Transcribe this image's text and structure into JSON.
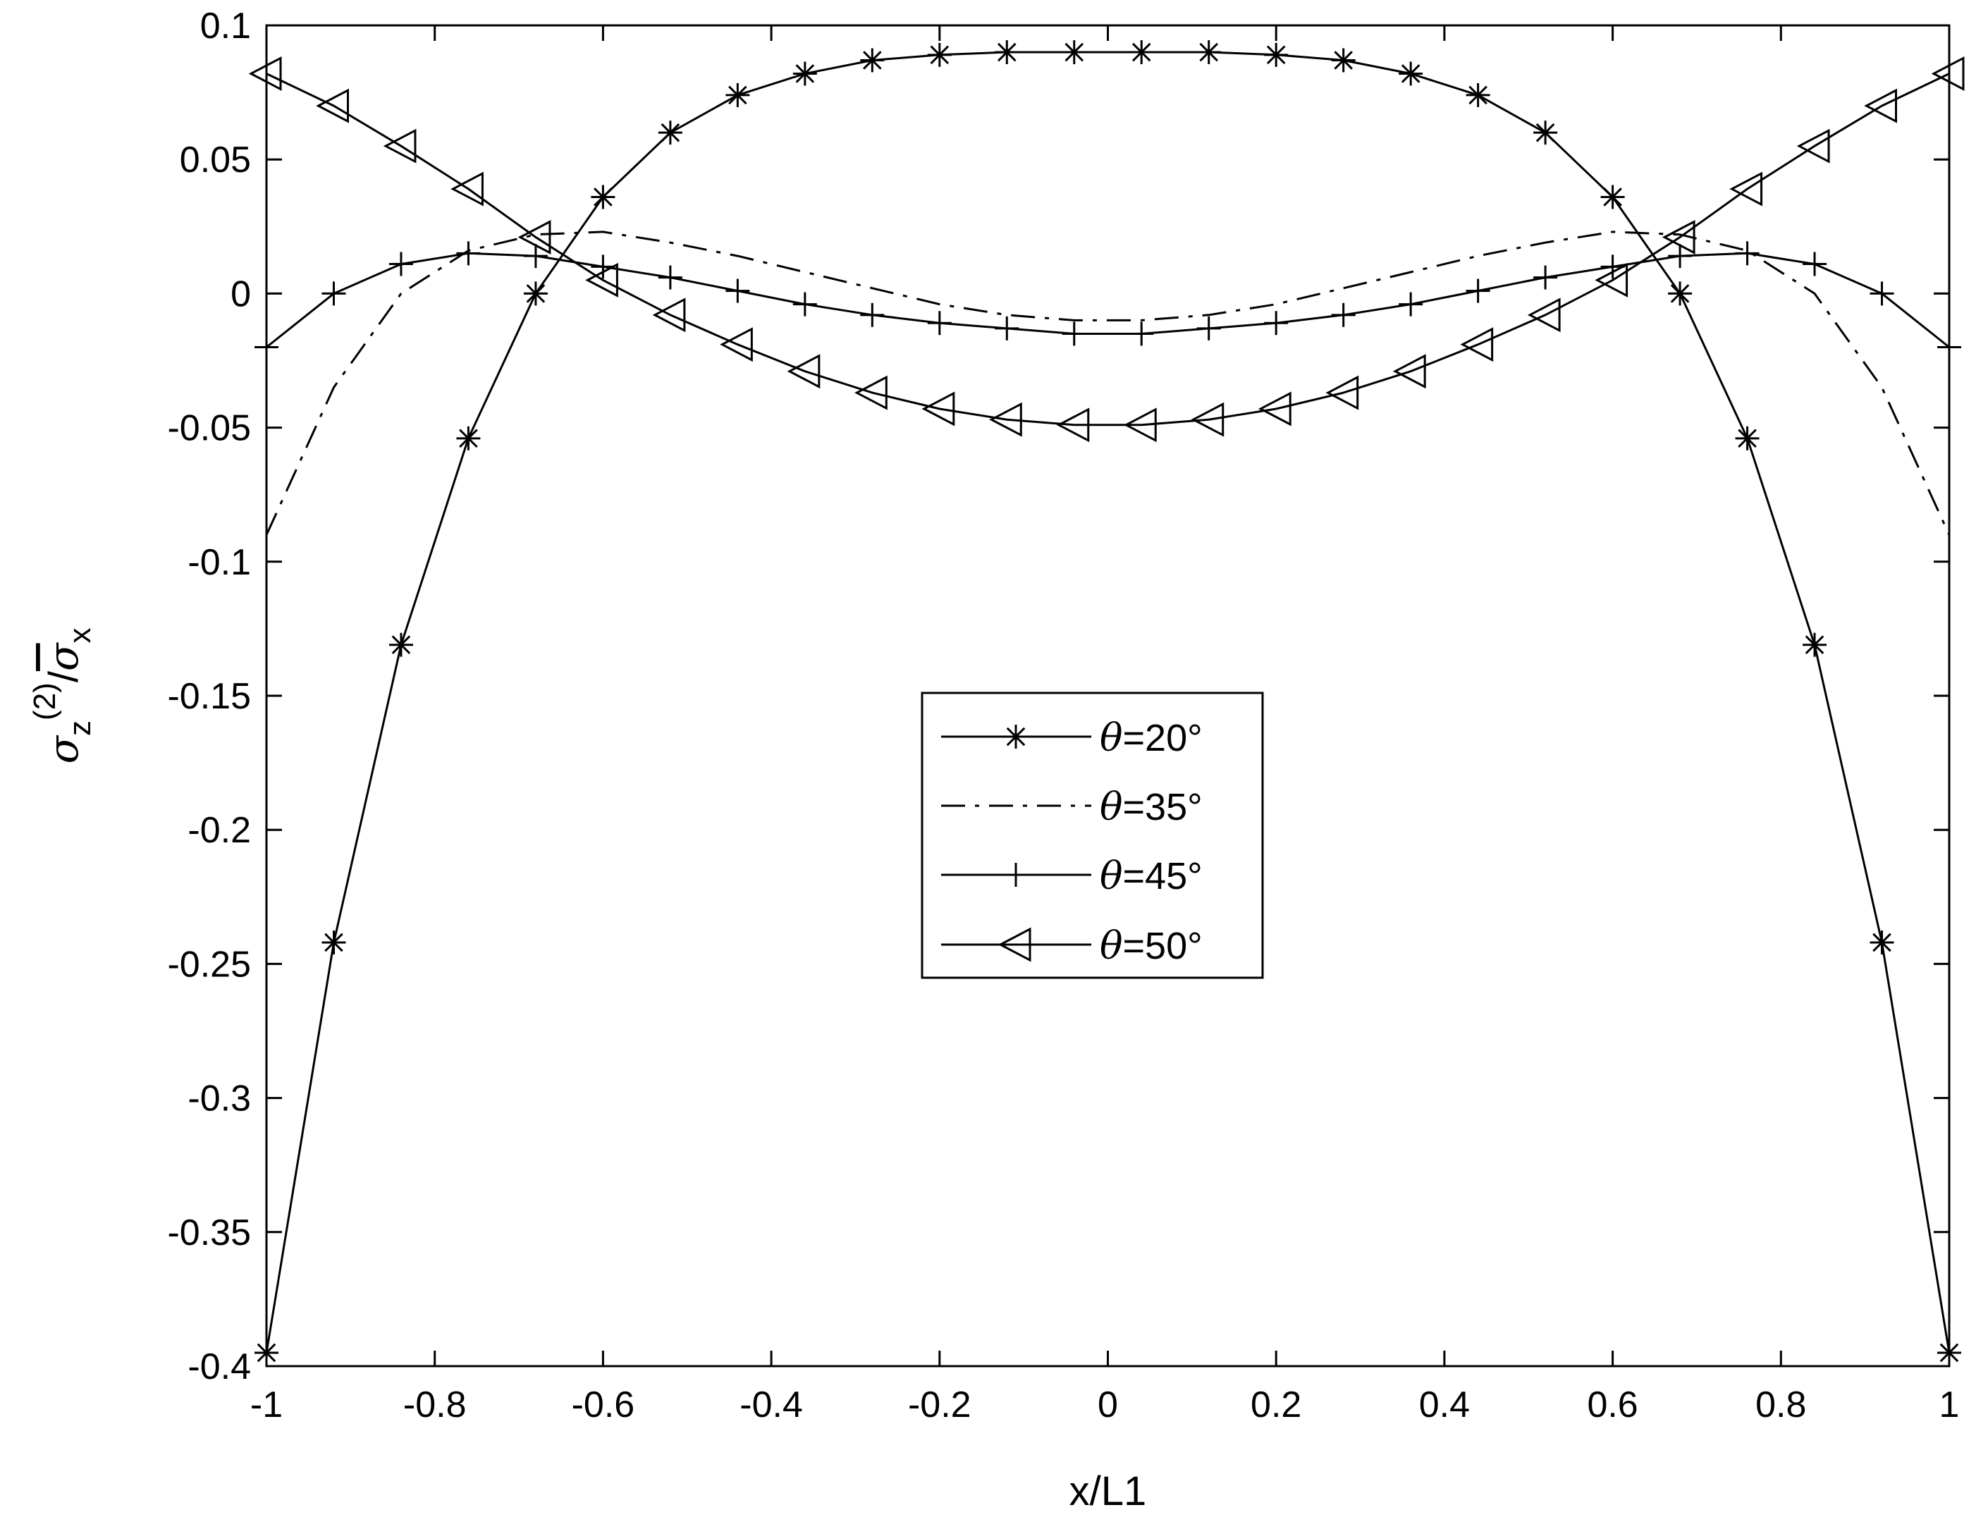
{
  "chart_data": {
    "type": "line",
    "xlabel": "x/L1",
    "ylabel": {
      "base1": "σ",
      "sup1": "(2)",
      "sub1": "z",
      "slash": "/",
      "base2": "σ",
      "sub2": "x"
    },
    "xlim": [
      -1,
      1
    ],
    "ylim": [
      -0.4,
      0.1
    ],
    "x_ticks": [
      -1,
      -0.8,
      -0.6,
      -0.4,
      -0.2,
      0,
      0.2,
      0.4,
      0.6,
      0.8,
      1
    ],
    "x_tick_labels": [
      "-1",
      "-0.8",
      "-0.6",
      "-0.4",
      "-0.2",
      "0",
      "0.2",
      "0.4",
      "0.6",
      "0.8",
      "1"
    ],
    "y_ticks": [
      0.1,
      0.05,
      0,
      -0.05,
      -0.1,
      -0.15,
      -0.2,
      -0.25,
      -0.3,
      -0.35,
      -0.4
    ],
    "y_tick_labels": [
      "0.1",
      "0.05",
      "0",
      "-0.05",
      "-0.1",
      "-0.15",
      "-0.2",
      "-0.25",
      "-0.3",
      "-0.35",
      "-0.4"
    ],
    "grid": false,
    "legend_position": "center",
    "legend_prefix": "θ",
    "x": [
      -1,
      -0.92,
      -0.84,
      -0.76,
      -0.68,
      -0.6,
      -0.52,
      -0.44,
      -0.36,
      -0.28,
      -0.2,
      -0.12,
      -0.04,
      0.04,
      0.12,
      0.2,
      0.28,
      0.36,
      0.44,
      0.52,
      0.6,
      0.68,
      0.76,
      0.84,
      0.92,
      1
    ],
    "series": [
      {
        "name": "=20°",
        "marker": "asterisk",
        "dash": "solid",
        "values": [
          -0.395,
          -0.242,
          -0.131,
          -0.054,
          0.0,
          0.036,
          0.06,
          0.074,
          0.082,
          0.087,
          0.089,
          0.09,
          0.09,
          0.09,
          0.09,
          0.089,
          0.087,
          0.082,
          0.074,
          0.06,
          0.036,
          0.0,
          -0.054,
          -0.131,
          -0.242,
          -0.395
        ]
      },
      {
        "name": "=35°",
        "marker": "none",
        "dash": "dashdot",
        "values": [
          -0.09,
          -0.035,
          0.0,
          0.016,
          0.022,
          0.023,
          0.019,
          0.014,
          0.008,
          0.002,
          -0.004,
          -0.008,
          -0.01,
          -0.01,
          -0.008,
          -0.004,
          0.002,
          0.008,
          0.014,
          0.019,
          0.023,
          0.022,
          0.016,
          0.0,
          -0.035,
          -0.09
        ]
      },
      {
        "name": "=45°",
        "marker": "plus",
        "dash": "solid",
        "values": [
          -0.02,
          0.0,
          0.011,
          0.015,
          0.014,
          0.01,
          0.006,
          0.001,
          -0.004,
          -0.008,
          -0.011,
          -0.013,
          -0.015,
          -0.015,
          -0.013,
          -0.011,
          -0.008,
          -0.004,
          0.001,
          0.006,
          0.01,
          0.014,
          0.015,
          0.011,
          0.0,
          -0.02
        ]
      },
      {
        "name": "=50°",
        "marker": "triangle-left",
        "dash": "solid",
        "values": [
          0.082,
          0.07,
          0.055,
          0.039,
          0.021,
          0.005,
          -0.008,
          -0.019,
          -0.029,
          -0.037,
          -0.043,
          -0.047,
          -0.049,
          -0.049,
          -0.047,
          -0.043,
          -0.037,
          -0.029,
          -0.019,
          -0.008,
          0.005,
          0.021,
          0.039,
          0.055,
          0.07,
          0.082
        ]
      }
    ]
  }
}
